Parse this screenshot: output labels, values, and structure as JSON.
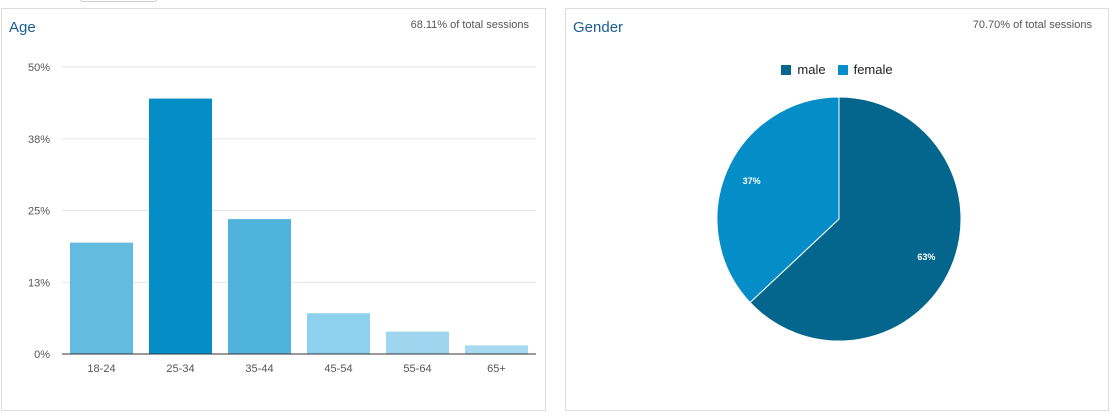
{
  "age_card": {
    "title": "Age",
    "share": "68.11% of total sessions"
  },
  "gender_card": {
    "title": "Gender",
    "share": "70.70% of total sessions"
  },
  "chart_data": [
    {
      "type": "bar",
      "title": "Age",
      "categories": [
        "18-24",
        "25-34",
        "35-44",
        "45-54",
        "55-64",
        "65+"
      ],
      "values": [
        19.4,
        44.5,
        23.5,
        7.1,
        3.9,
        1.5
      ],
      "value_unit": "%",
      "yticks": [
        "0%",
        "13%",
        "25%",
        "38%",
        "50%"
      ],
      "ytick_values": [
        0,
        12.5,
        25,
        37.5,
        50
      ],
      "ylim": [
        0,
        50
      ],
      "grid": true,
      "colors": [
        "#63bbdf",
        "#058dc7",
        "#50b3dc",
        "#8ed1ee",
        "#9ed6ef",
        "#a6daf1"
      ]
    },
    {
      "type": "pie",
      "title": "Gender",
      "labels": [
        "male",
        "female"
      ],
      "values": [
        63,
        37
      ],
      "slice_labels": [
        "63%",
        "37%"
      ],
      "colors": [
        "#05668d",
        "#058dc7"
      ],
      "legend_position": "top"
    }
  ]
}
